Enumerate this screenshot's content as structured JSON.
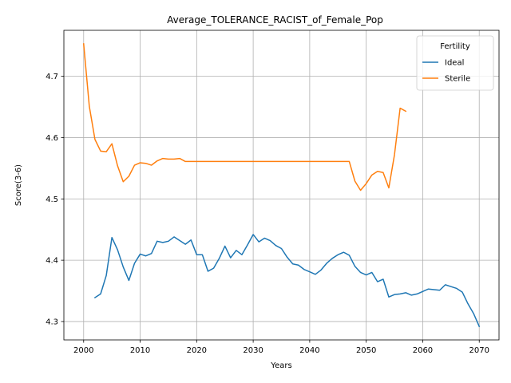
{
  "chart_data": {
    "type": "line",
    "title": "Average_TOLERANCE_RACIST_of_Female_Pop",
    "xlabel": "Years",
    "ylabel": "Score(3-6)",
    "xlim": [
      1996.5,
      2073.5
    ],
    "ylim": [
      4.27,
      4.775
    ],
    "xticks": [
      2000,
      2010,
      2020,
      2030,
      2040,
      2050,
      2060,
      2070
    ],
    "yticks": [
      4.3,
      4.4,
      4.5,
      4.6,
      4.7
    ],
    "ytick_labels": [
      "4.3",
      "4.4",
      "4.5",
      "4.6",
      "4.7"
    ],
    "grid": true,
    "legend": {
      "title": "Fertility",
      "placement": "top-right"
    },
    "series": [
      {
        "name": "Ideal",
        "color": "#1f77b4",
        "x": [
          2002,
          2003,
          2004,
          2005,
          2006,
          2007,
          2008,
          2009,
          2010,
          2011,
          2012,
          2013,
          2014,
          2015,
          2016,
          2017,
          2018,
          2019,
          2020,
          2021,
          2022,
          2023,
          2024,
          2025,
          2026,
          2027,
          2028,
          2029,
          2030,
          2031,
          2032,
          2033,
          2034,
          2035,
          2036,
          2037,
          2038,
          2039,
          2040,
          2041,
          2042,
          2043,
          2044,
          2045,
          2046,
          2047,
          2048,
          2049,
          2050,
          2051,
          2052,
          2053,
          2054,
          2055,
          2056,
          2057,
          2058,
          2059,
          2060,
          2061,
          2062,
          2063,
          2064,
          2065,
          2066,
          2067,
          2068,
          2069,
          2070
        ],
        "values": [
          4.339,
          4.345,
          4.375,
          4.437,
          4.417,
          4.389,
          4.367,
          4.395,
          4.41,
          4.407,
          4.411,
          4.431,
          4.429,
          4.431,
          4.438,
          4.432,
          4.426,
          4.433,
          4.409,
          4.409,
          4.382,
          4.387,
          4.403,
          4.423,
          4.404,
          4.416,
          4.409,
          4.425,
          4.442,
          4.43,
          4.436,
          4.432,
          4.424,
          4.419,
          4.405,
          4.394,
          4.392,
          4.385,
          4.381,
          4.377,
          4.384,
          4.395,
          4.403,
          4.409,
          4.413,
          4.408,
          4.39,
          4.38,
          4.376,
          4.38,
          4.365,
          4.369,
          4.34,
          4.344,
          4.345,
          4.347,
          4.343,
          4.345,
          4.349,
          4.353,
          4.352,
          4.351,
          4.36,
          4.357,
          4.354,
          4.348,
          4.329,
          4.313,
          4.292
        ]
      },
      {
        "name": "Sterile",
        "color": "#ff7f0e",
        "x": [
          2000,
          2001,
          2002,
          2003,
          2004,
          2005,
          2006,
          2007,
          2008,
          2009,
          2010,
          2011,
          2012,
          2013,
          2014,
          2015,
          2016,
          2017,
          2018,
          2019,
          2020,
          2021,
          2022,
          2023,
          2024,
          2025,
          2026,
          2027,
          2028,
          2029,
          2030,
          2031,
          2032,
          2033,
          2034,
          2035,
          2036,
          2037,
          2038,
          2039,
          2040,
          2041,
          2042,
          2043,
          2044,
          2045,
          2046,
          2047,
          2048,
          2049,
          2050,
          2051,
          2052,
          2053,
          2054,
          2055,
          2056,
          2057
        ],
        "values": [
          4.753,
          4.651,
          4.597,
          4.578,
          4.577,
          4.59,
          4.554,
          4.528,
          4.537,
          4.555,
          4.559,
          4.558,
          4.555,
          4.562,
          4.566,
          4.565,
          4.565,
          4.566,
          4.561,
          4.561,
          4.561,
          4.561,
          4.561,
          4.561,
          4.561,
          4.561,
          4.561,
          4.561,
          4.561,
          4.561,
          4.561,
          4.561,
          4.561,
          4.561,
          4.561,
          4.561,
          4.561,
          4.561,
          4.561,
          4.561,
          4.561,
          4.561,
          4.561,
          4.561,
          4.561,
          4.561,
          4.561,
          4.561,
          4.529,
          4.514,
          4.525,
          4.539,
          4.545,
          4.543,
          4.518,
          4.572,
          4.648,
          4.643
        ]
      }
    ]
  }
}
